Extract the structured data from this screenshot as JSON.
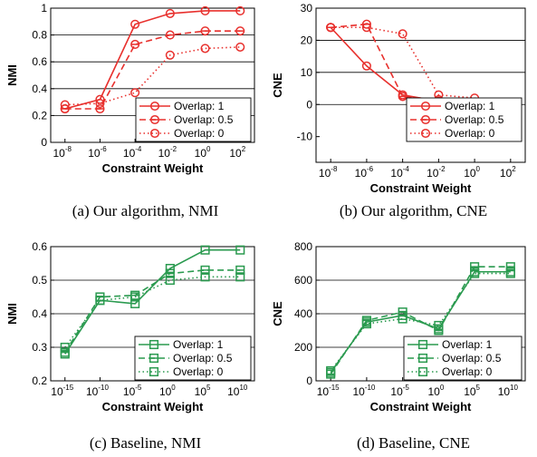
{
  "chart_data": [
    {
      "type": "line",
      "caption": "(a)  Our algorithm, NMI",
      "xlabel": "Constraint Weight",
      "ylabel": "NMI",
      "x_exponents": [
        -8,
        -6,
        -4,
        -2,
        0,
        2
      ],
      "x_tick_base": "10",
      "ylim": [
        0,
        1
      ],
      "yticks": [
        0,
        0.2,
        0.4,
        0.6,
        0.8,
        1
      ],
      "ytick_labels": [
        "0",
        "0.2",
        "0.4",
        "0.6",
        "0.8",
        "1"
      ],
      "grid": "horizontal",
      "legend_position": "bottom-right",
      "color": "#e8302d",
      "marker": "circle",
      "series": [
        {
          "name": "Overlap: 1",
          "style": "solid",
          "values": [
            0.25,
            0.32,
            0.88,
            0.96,
            0.98,
            0.98
          ]
        },
        {
          "name": "Overlap: 0.5",
          "style": "dashed",
          "values": [
            0.25,
            0.25,
            0.73,
            0.8,
            0.83,
            0.83
          ]
        },
        {
          "name": "Overlap: 0",
          "style": "dotted",
          "values": [
            0.28,
            0.29,
            0.37,
            0.65,
            0.7,
            0.71
          ]
        }
      ]
    },
    {
      "type": "line",
      "caption": "(b)  Our algorithm, CNE",
      "xlabel": "Constraint Weight",
      "ylabel": "CNE",
      "x_exponents": [
        -8,
        -6,
        -4,
        -2,
        0,
        2
      ],
      "x_tick_base": "10",
      "ylim": [
        -18,
        30
      ],
      "yticks": [
        -10,
        0,
        10,
        20,
        30
      ],
      "ytick_labels": [
        "-10",
        "0",
        "10",
        "20",
        "30"
      ],
      "grid": "horizontal",
      "legend_position": "bottom-right",
      "color": "#e8302d",
      "marker": "circle",
      "series": [
        {
          "name": "Overlap: 1",
          "style": "solid",
          "values": [
            24,
            12,
            3,
            1,
            0.5,
            0
          ]
        },
        {
          "name": "Overlap: 0.5",
          "style": "dashed",
          "values": [
            24,
            25,
            2.5,
            1.5,
            0.5,
            0
          ]
        },
        {
          "name": "Overlap: 0",
          "style": "dotted",
          "values": [
            24,
            24,
            22,
            3,
            2,
            0
          ]
        }
      ]
    },
    {
      "type": "line",
      "caption": "(c)  Baseline, NMI",
      "xlabel": "Constraint Weight",
      "ylabel": "NMI",
      "x_exponents": [
        -15,
        -10,
        -5,
        0,
        5,
        10
      ],
      "x_tick_base": "10",
      "ylim": [
        0.2,
        0.6
      ],
      "yticks": [
        0.2,
        0.3,
        0.4,
        0.5,
        0.6
      ],
      "ytick_labels": [
        "0.2",
        "0.3",
        "0.4",
        "0.5",
        "0.6"
      ],
      "grid": "horizontal",
      "legend_position": "bottom-right",
      "color": "#2a9a4f",
      "marker": "square",
      "series": [
        {
          "name": "Overlap: 1",
          "style": "solid",
          "values": [
            0.28,
            0.44,
            0.43,
            0.535,
            0.59,
            0.59
          ]
        },
        {
          "name": "Overlap: 0.5",
          "style": "dashed",
          "values": [
            0.285,
            0.45,
            0.455,
            0.52,
            0.53,
            0.53
          ]
        },
        {
          "name": "Overlap: 0",
          "style": "dotted",
          "values": [
            0.3,
            0.44,
            0.45,
            0.5,
            0.51,
            0.51
          ]
        }
      ]
    },
    {
      "type": "line",
      "caption": "(d)  Baseline, CNE",
      "xlabel": "Constraint Weight",
      "ylabel": "CNE",
      "x_exponents": [
        -15,
        -10,
        -5,
        0,
        5,
        10
      ],
      "x_tick_base": "10",
      "ylim": [
        0,
        800
      ],
      "yticks": [
        0,
        200,
        400,
        600,
        800
      ],
      "ytick_labels": [
        "0",
        "200",
        "400",
        "600",
        "800"
      ],
      "grid": "horizontal",
      "legend_position": "bottom-right",
      "color": "#2a9a4f",
      "marker": "square",
      "series": [
        {
          "name": "Overlap: 1",
          "style": "solid",
          "values": [
            50,
            350,
            390,
            310,
            650,
            650
          ]
        },
        {
          "name": "Overlap: 0.5",
          "style": "dashed",
          "values": [
            40,
            360,
            410,
            300,
            680,
            680
          ]
        },
        {
          "name": "Overlap: 0",
          "style": "dotted",
          "values": [
            60,
            340,
            370,
            330,
            640,
            640
          ]
        }
      ]
    }
  ]
}
